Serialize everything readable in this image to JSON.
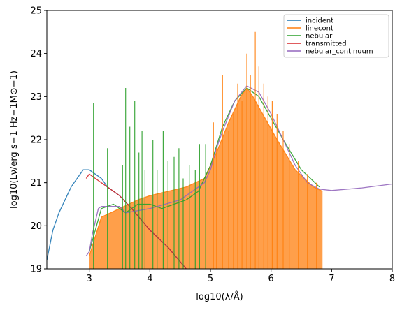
{
  "chart_data": {
    "type": "line",
    "title": "",
    "xlabel": "log10(λ/Å)",
    "ylabel": "log10(Lν/erg s−1 Hz−1M⊙−1)",
    "xlim": [
      2.3,
      8.0
    ],
    "ylim": [
      19,
      25
    ],
    "xticks": [
      3,
      4,
      5,
      6,
      7,
      8
    ],
    "yticks": [
      19,
      20,
      21,
      22,
      23,
      24,
      25
    ],
    "grid": false,
    "legend_position": "top-right",
    "series": [
      {
        "name": "incident",
        "color": "#1f77b4",
        "x": [
          2.3,
          2.4,
          2.5,
          2.6,
          2.7,
          2.8,
          2.9,
          3.0,
          3.1,
          3.2,
          3.3,
          3.5,
          3.7,
          4.0,
          4.3,
          4.6
        ],
        "y": [
          19.2,
          19.9,
          20.3,
          20.6,
          20.9,
          21.1,
          21.3,
          21.3,
          21.2,
          21.1,
          20.9,
          20.7,
          20.4,
          19.9,
          19.5,
          19.0
        ]
      },
      {
        "name": "linecont",
        "color": "#ff7f0e",
        "x": [
          3.0,
          3.2,
          3.5,
          3.8,
          4.0,
          4.3,
          4.6,
          4.9,
          5.1,
          5.3,
          5.5,
          5.6,
          5.7,
          5.9,
          6.1,
          6.4,
          6.7,
          6.85
        ],
        "y": [
          19.3,
          20.2,
          20.4,
          20.6,
          20.7,
          20.8,
          20.9,
          21.1,
          21.7,
          22.4,
          23.0,
          23.2,
          23.0,
          22.5,
          22.0,
          21.3,
          20.9,
          20.8
        ]
      },
      {
        "name": "nebular",
        "color": "#2ca02c",
        "x": [
          3.0,
          3.2,
          3.4,
          3.6,
          3.8,
          4.0,
          4.2,
          4.4,
          4.6,
          4.8,
          5.0,
          5.2,
          5.4,
          5.6,
          5.8,
          6.0,
          6.2,
          6.5,
          6.8
        ],
        "y": [
          19.4,
          20.4,
          20.5,
          20.3,
          20.5,
          20.5,
          20.4,
          20.5,
          20.6,
          20.8,
          21.4,
          22.3,
          22.9,
          23.2,
          23.0,
          22.5,
          22.0,
          21.3,
          20.9
        ]
      },
      {
        "name": "transmitted",
        "color": "#d62728",
        "x": [
          2.95,
          3.0,
          3.1,
          3.2,
          3.3,
          3.5,
          3.7,
          4.0,
          4.3,
          4.6
        ],
        "y": [
          21.1,
          21.2,
          21.1,
          21.0,
          20.9,
          20.7,
          20.4,
          19.9,
          19.5,
          19.0
        ]
      },
      {
        "name": "nebular_continuum",
        "color": "#9467bd",
        "x": [
          2.95,
          3.0,
          3.05,
          3.15,
          3.2,
          3.3,
          3.5,
          3.6,
          4.0,
          4.5,
          4.9,
          5.0,
          5.1,
          5.2,
          5.4,
          5.6,
          5.8,
          6.0,
          6.2,
          6.4,
          6.6,
          6.8,
          7.0,
          7.5,
          8.0
        ],
        "y": [
          19.3,
          19.4,
          19.8,
          20.4,
          20.45,
          20.45,
          20.45,
          20.3,
          20.4,
          20.6,
          21.0,
          21.3,
          21.8,
          22.2,
          22.9,
          23.25,
          23.1,
          22.6,
          22.0,
          21.4,
          21.0,
          20.85,
          20.82,
          20.88,
          20.97
        ]
      }
    ],
    "emission_lines": [
      {
        "x": 3.07,
        "y": 22.85
      },
      {
        "x": 3.3,
        "y": 21.8
      },
      {
        "x": 3.55,
        "y": 21.4
      },
      {
        "x": 3.6,
        "y": 23.2
      },
      {
        "x": 3.67,
        "y": 22.3
      },
      {
        "x": 3.75,
        "y": 22.9
      },
      {
        "x": 3.82,
        "y": 21.7
      },
      {
        "x": 3.87,
        "y": 22.2
      },
      {
        "x": 3.92,
        "y": 21.3
      },
      {
        "x": 4.05,
        "y": 22.0
      },
      {
        "x": 4.12,
        "y": 21.3
      },
      {
        "x": 4.22,
        "y": 22.2
      },
      {
        "x": 4.3,
        "y": 21.5
      },
      {
        "x": 4.4,
        "y": 21.6
      },
      {
        "x": 4.48,
        "y": 21.8
      },
      {
        "x": 4.55,
        "y": 21.1
      },
      {
        "x": 4.65,
        "y": 21.4
      },
      {
        "x": 4.75,
        "y": 21.3
      },
      {
        "x": 4.82,
        "y": 21.9
      },
      {
        "x": 4.92,
        "y": 21.9
      },
      {
        "x": 5.05,
        "y": 22.4
      },
      {
        "x": 5.1,
        "y": 21.8
      },
      {
        "x": 5.2,
        "y": 23.5
      },
      {
        "x": 5.3,
        "y": 22.2
      },
      {
        "x": 5.38,
        "y": 22.6
      },
      {
        "x": 5.45,
        "y": 23.3
      },
      {
        "x": 5.52,
        "y": 22.9
      },
      {
        "x": 5.6,
        "y": 24.0
      },
      {
        "x": 5.66,
        "y": 23.5
      },
      {
        "x": 5.74,
        "y": 24.5
      },
      {
        "x": 5.8,
        "y": 23.7
      },
      {
        "x": 5.88,
        "y": 23.3
      },
      {
        "x": 5.95,
        "y": 23.0
      },
      {
        "x": 6.02,
        "y": 22.9
      },
      {
        "x": 6.1,
        "y": 22.6
      },
      {
        "x": 6.2,
        "y": 22.2
      },
      {
        "x": 6.3,
        "y": 21.9
      },
      {
        "x": 6.45,
        "y": 21.5
      },
      {
        "x": 6.6,
        "y": 21.2
      },
      {
        "x": 6.75,
        "y": 21.0
      }
    ]
  }
}
